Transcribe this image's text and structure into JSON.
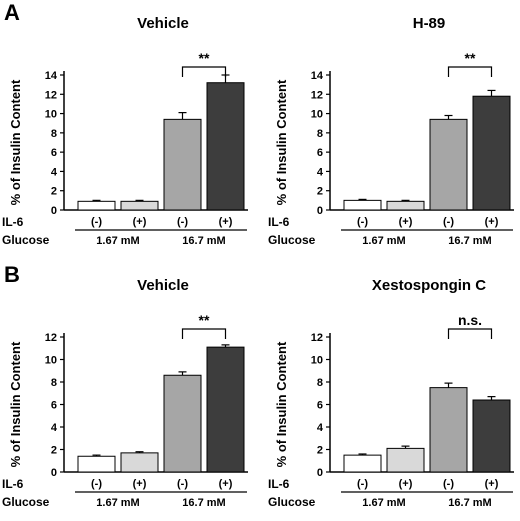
{
  "panels": [
    "A",
    "B"
  ],
  "chart_data": [
    {
      "type": "bar",
      "panel": "A",
      "title": "Vehicle",
      "ylabel": "% of Insulin Content",
      "ylim": [
        0,
        14
      ],
      "yticks": [
        0,
        2,
        4,
        6,
        8,
        10,
        12,
        14
      ],
      "il6_label": "IL-6",
      "glucose_label": "Glucose",
      "il6": [
        "(-)",
        "(+)",
        "(-)",
        "(+)"
      ],
      "glucose_groups": [
        "1.67 mM",
        "16.7 mM"
      ],
      "values": [
        0.9,
        0.9,
        9.4,
        13.2
      ],
      "errors": [
        0.1,
        0.1,
        0.7,
        0.8
      ],
      "colors": [
        "#ffffff",
        "#d9d9d9",
        "#a6a6a6",
        "#3d3d3d"
      ],
      "significance": "**"
    },
    {
      "type": "bar",
      "panel": "A",
      "title": "H-89",
      "ylabel": "% of Insulin Content",
      "ylim": [
        0,
        14
      ],
      "yticks": [
        0,
        2,
        4,
        6,
        8,
        10,
        12,
        14
      ],
      "il6_label": "IL-6",
      "glucose_label": "Glucose",
      "il6": [
        "(-)",
        "(+)",
        "(-)",
        "(+)"
      ],
      "glucose_groups": [
        "1.67 mM",
        "16.7 mM"
      ],
      "values": [
        1.0,
        0.9,
        9.4,
        11.8
      ],
      "errors": [
        0.1,
        0.1,
        0.4,
        0.6
      ],
      "colors": [
        "#ffffff",
        "#d9d9d9",
        "#a6a6a6",
        "#3d3d3d"
      ],
      "significance": "**"
    },
    {
      "type": "bar",
      "panel": "B",
      "title": "Vehicle",
      "ylabel": "% of Insulin Content",
      "ylim": [
        0,
        12
      ],
      "yticks": [
        0,
        2,
        4,
        6,
        8,
        10,
        12
      ],
      "il6_label": "IL-6",
      "glucose_label": "Glucose",
      "il6": [
        "(-)",
        "(+)",
        "(-)",
        "(+)"
      ],
      "glucose_groups": [
        "1.67 mM",
        "16.7 mM"
      ],
      "values": [
        1.4,
        1.7,
        8.6,
        11.1
      ],
      "errors": [
        0.1,
        0.1,
        0.3,
        0.2
      ],
      "colors": [
        "#ffffff",
        "#d9d9d9",
        "#a6a6a6",
        "#3d3d3d"
      ],
      "significance": "**"
    },
    {
      "type": "bar",
      "panel": "B",
      "title": "Xestospongin C",
      "ylabel": "% of Insulin Content",
      "ylim": [
        0,
        12
      ],
      "yticks": [
        0,
        2,
        4,
        6,
        8,
        10,
        12
      ],
      "il6_label": "IL-6",
      "glucose_label": "Glucose",
      "il6": [
        "(-)",
        "(+)",
        "(-)",
        "(+)"
      ],
      "glucose_groups": [
        "1.67 mM",
        "16.7 mM"
      ],
      "values": [
        1.5,
        2.1,
        7.5,
        6.4
      ],
      "errors": [
        0.1,
        0.2,
        0.4,
        0.3
      ],
      "colors": [
        "#ffffff",
        "#d9d9d9",
        "#a6a6a6",
        "#3d3d3d"
      ],
      "significance": "n.s."
    }
  ]
}
